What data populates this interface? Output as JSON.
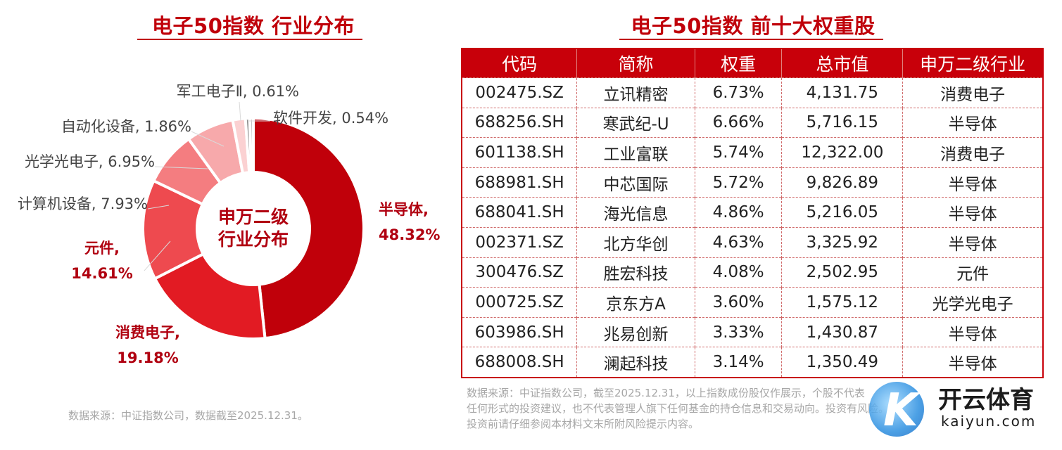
{
  "left_title": "电子50指数 行业分布",
  "right_title": "电子50指数 前十大权重股",
  "chart_data": {
    "type": "pie",
    "title": "电子50指数 行业分布",
    "center_text": [
      "申万二级",
      "行业分布"
    ],
    "slices": [
      {
        "name": "半导体",
        "value": 48.32,
        "label": "48.32%",
        "color": "#c0000a"
      },
      {
        "name": "消费电子",
        "value": 19.18,
        "label": "19.18%",
        "color": "#e21b23"
      },
      {
        "name": "元件",
        "value": 14.61,
        "label": "14.61%",
        "color": "#ee4a4f"
      },
      {
        "name": "计算机设备",
        "value": 7.93,
        "label": "7.93%",
        "color": "#f47d80"
      },
      {
        "name": "光学光电子",
        "value": 6.95,
        "label": "6.95%",
        "color": "#f7a9ab"
      },
      {
        "name": "自动化设备",
        "value": 1.86,
        "label": "1.86%",
        "color": "#fbd1d2"
      },
      {
        "name": "军工电子Ⅱ",
        "value": 0.61,
        "label": "0.61%",
        "color": "#8c8c8c"
      },
      {
        "name": "软件开发",
        "value": 0.54,
        "label": "0.54%",
        "color": "#c4c4c4"
      }
    ]
  },
  "left_source": "数据来源：中证指数公司，数据截至2025.12.31。",
  "table": {
    "headers": [
      "代码",
      "简称",
      "权重",
      "总市值",
      "申万二级行业"
    ],
    "rows": [
      [
        "002475.SZ",
        "立讯精密",
        "6.73%",
        "4,131.75",
        "消费电子"
      ],
      [
        "688256.SH",
        "寒武纪-U",
        "6.66%",
        "5,716.15",
        "半导体"
      ],
      [
        "601138.SH",
        "工业富联",
        "5.74%",
        "12,322.00",
        "消费电子"
      ],
      [
        "688981.SH",
        "中芯国际",
        "5.72%",
        "9,826.89",
        "半导体"
      ],
      [
        "688041.SH",
        "海光信息",
        "4.86%",
        "5,216.05",
        "半导体"
      ],
      [
        "002371.SZ",
        "北方华创",
        "4.63%",
        "3,325.92",
        "半导体"
      ],
      [
        "300476.SZ",
        "胜宏科技",
        "4.08%",
        "2,502.95",
        "元件"
      ],
      [
        "000725.SZ",
        "京东方A",
        "3.60%",
        "1,575.12",
        "光学光电子"
      ],
      [
        "603986.SH",
        "兆易创新",
        "3.33%",
        "1,430.87",
        "半导体"
      ],
      [
        "688008.SH",
        "澜起科技",
        "3.14%",
        "1,350.49",
        "半导体"
      ]
    ]
  },
  "footnote_lines": [
    "数据来源：中证指数公司，截至2025.12.31，以上指数成份股仅作展示，个股不代表",
    "任何形式的投资建议，也不代表管理人旗下任何基金的持仓信息和交易动向。投资有风险。",
    "投资前请仔细参阅本材料文末所附风险提示内容。"
  ],
  "watermark": {
    "text": "开云体育",
    "url": "kaiyun.com"
  }
}
